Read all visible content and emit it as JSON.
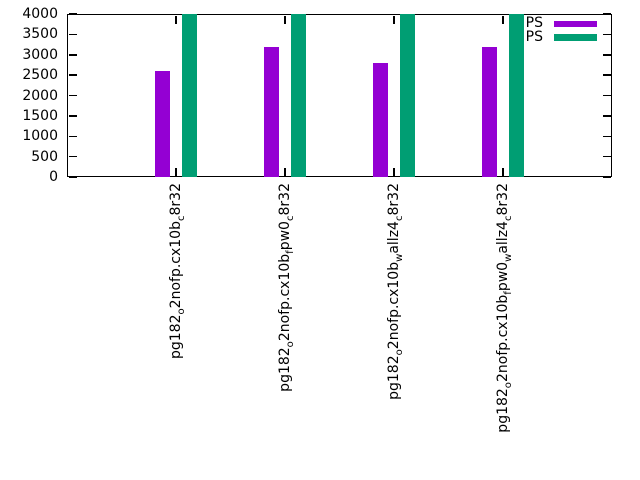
{
  "chart_data": {
    "type": "bar",
    "title": "",
    "xlabel": "",
    "ylabel": "",
    "categories": [
      "pg182_o2nofp.cx10b_c8r32",
      "pg182_o2nofp.cx10b_fpw0_c8r32",
      "pg182_o2nofp.cx10b_wallz4_c8r32",
      "pg182_o2nofp.cx10b_fpw0_wallz4_c8r32"
    ],
    "series": [
      {
        "name": "PS",
        "color": "#9400d3",
        "values": [
          2600,
          3200,
          2800,
          3200
        ]
      },
      {
        "name": "PS",
        "color": "#009e73",
        "values": [
          4000,
          4000,
          4000,
          4000
        ],
        "clipped_at_ymax": true
      }
    ],
    "ylim": [
      0,
      4000
    ],
    "yticks": [
      0,
      500,
      1000,
      1500,
      2000,
      2500,
      3000,
      3500,
      4000
    ],
    "grid": false,
    "legend_position": "top-right-inside",
    "enhanced_subscripts": true,
    "axis_color": "#000000",
    "text_color": "#000000",
    "background_color": "#ffffff"
  }
}
